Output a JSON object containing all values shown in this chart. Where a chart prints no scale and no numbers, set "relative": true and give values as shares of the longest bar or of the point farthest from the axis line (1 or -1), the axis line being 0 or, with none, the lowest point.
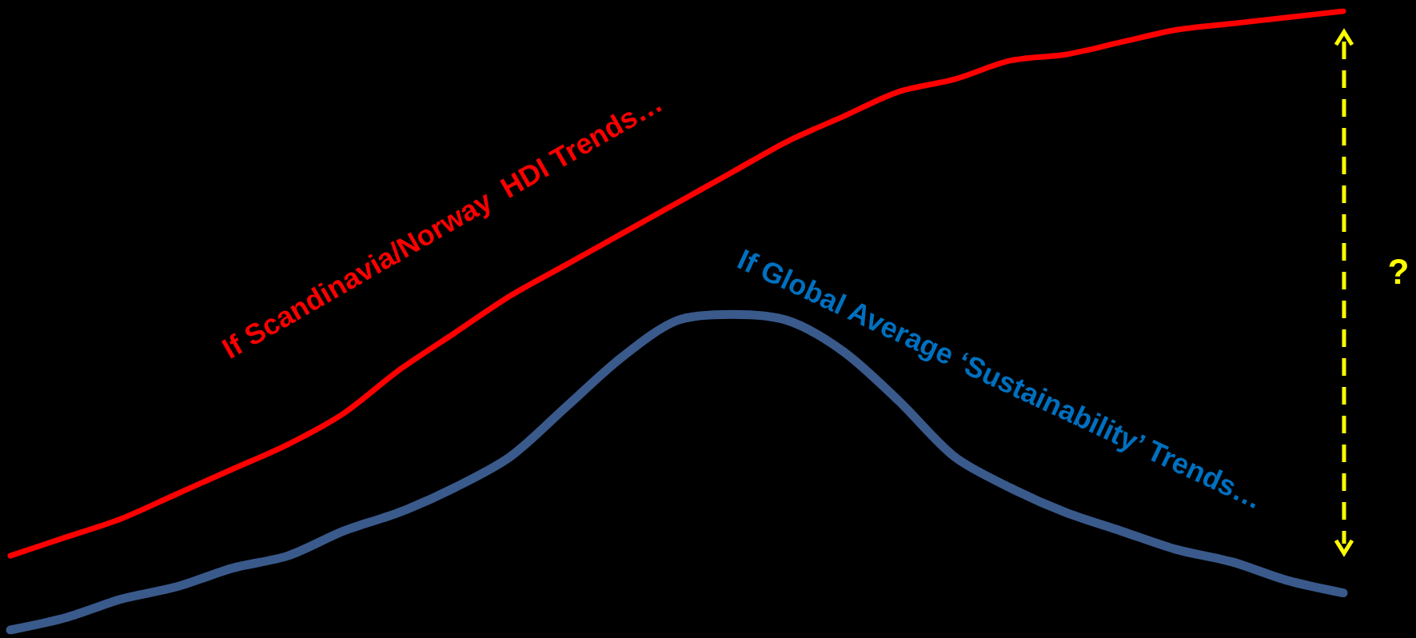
{
  "chart_data": {
    "type": "line",
    "relative": true,
    "legend": false,
    "grid": false,
    "marker": "none",
    "line_style": "solid",
    "categories": [
      null,
      null,
      null,
      null,
      null,
      null,
      null,
      null,
      null,
      null,
      null,
      null,
      null,
      null,
      null,
      null,
      null,
      null,
      null,
      null,
      null,
      null,
      null,
      null,
      null
    ],
    "series": [
      {
        "name": "If Scandinavia/Norway  HDI Trends…",
        "color": "#ff0000",
        "values": [
          0.12,
          0.15,
          0.18,
          0.22,
          0.26,
          0.3,
          0.35,
          0.42,
          0.48,
          0.54,
          0.59,
          0.64,
          0.69,
          0.74,
          0.79,
          0.83,
          0.87,
          0.89,
          0.92,
          0.93,
          0.95,
          0.97,
          0.98,
          0.99,
          1
        ]
      },
      {
        "name": "If Global Average ‘Sustainability’ Trends…",
        "color": "#3a5a8c",
        "values": [
          0,
          0.02,
          0.05,
          0.07,
          0.1,
          0.12,
          0.16,
          0.19,
          0.23,
          0.28,
          0.36,
          0.44,
          0.5,
          0.51,
          0.5,
          0.45,
          0.37,
          0.28,
          0.23,
          0.19,
          0.16,
          0.13,
          0.11,
          0.08,
          0.06
        ]
      }
    ],
    "annotations": [
      "?"
    ]
  }
}
